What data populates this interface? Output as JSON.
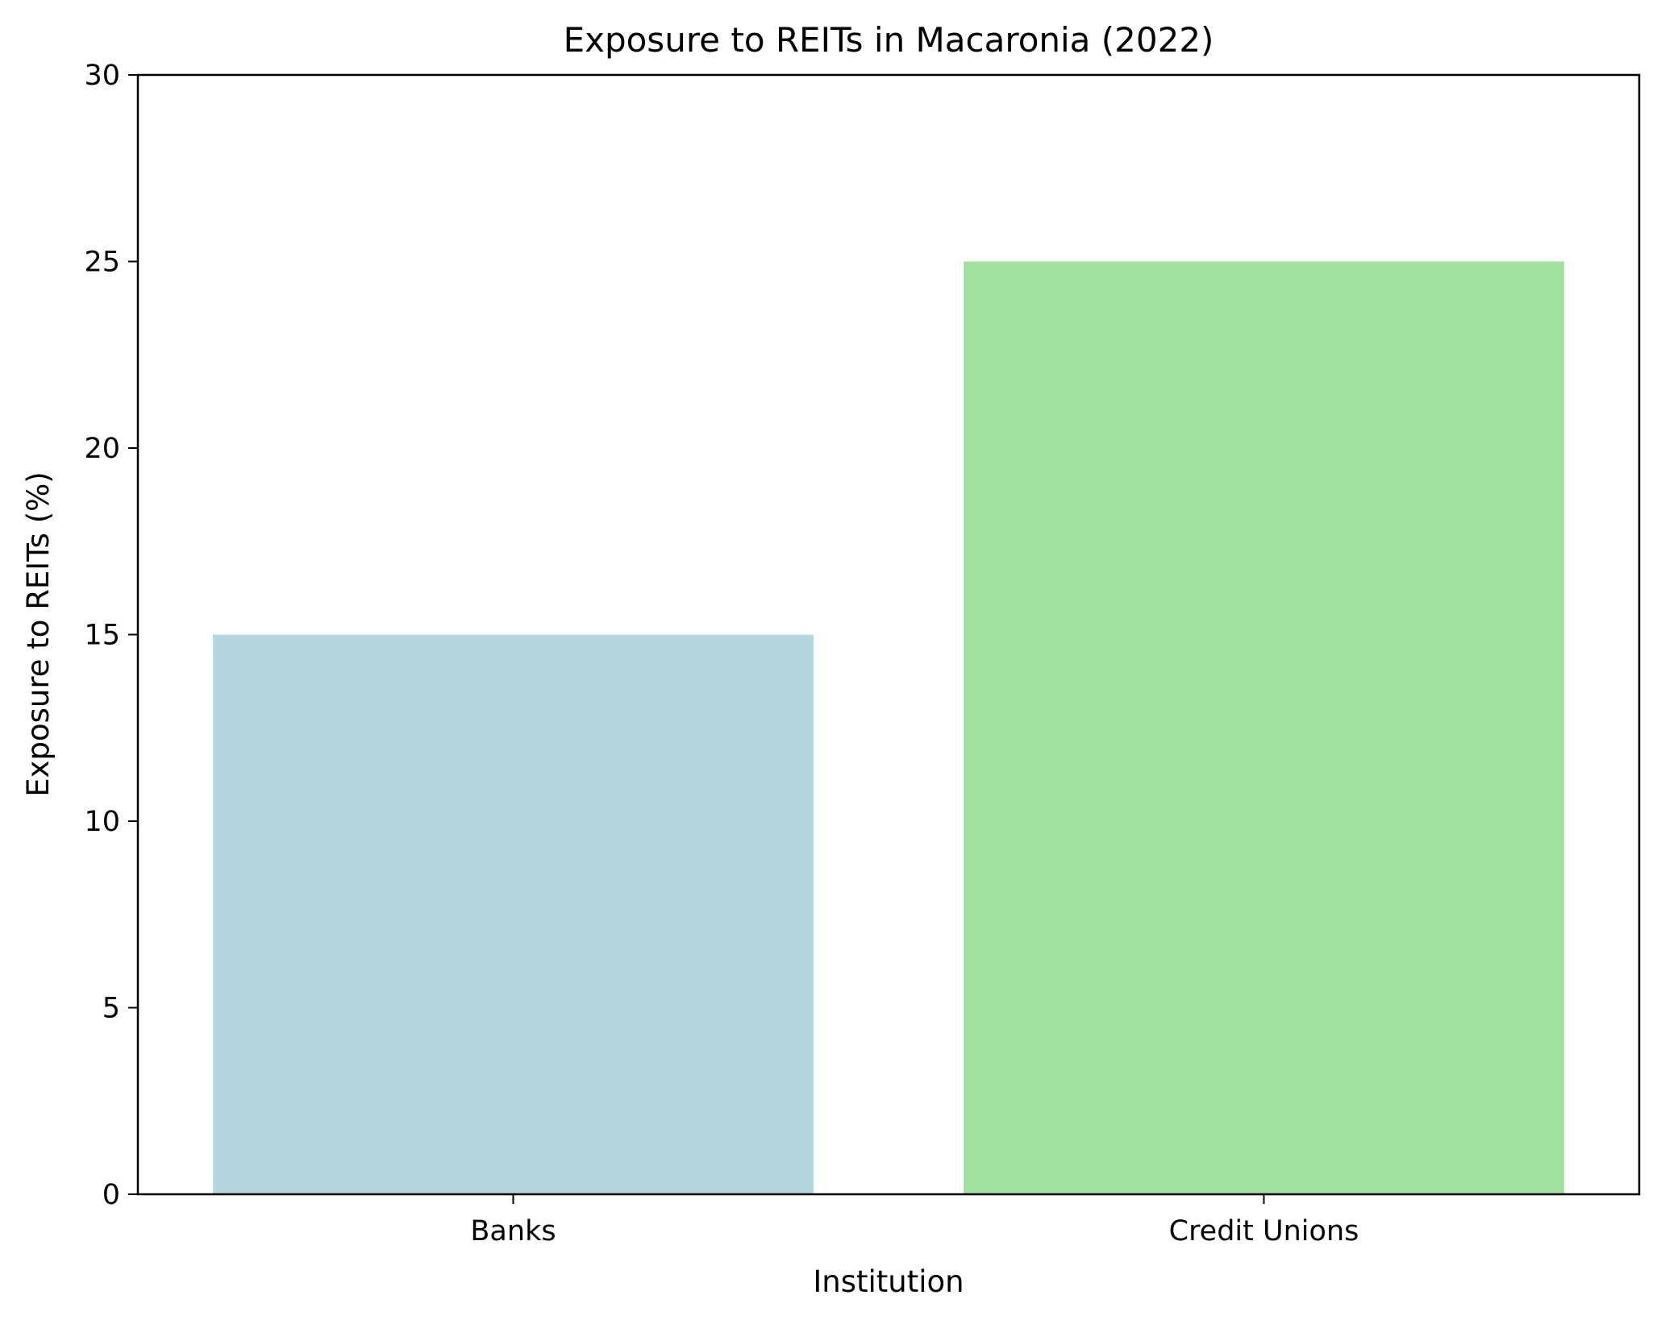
{
  "chart_data": {
    "type": "bar",
    "title": "Exposure to REITs in Macaronia (2022)",
    "xlabel": "Institution",
    "ylabel": "Exposure to REITs (%)",
    "categories": [
      "Banks",
      "Credit Unions"
    ],
    "values": [
      15,
      25
    ],
    "colors": [
      "#b4d6df",
      "#9ee29e"
    ],
    "ylim": [
      0,
      30
    ],
    "yticks": [
      0,
      5,
      10,
      15,
      20,
      25,
      30
    ],
    "grid": false,
    "legend": "none"
  }
}
